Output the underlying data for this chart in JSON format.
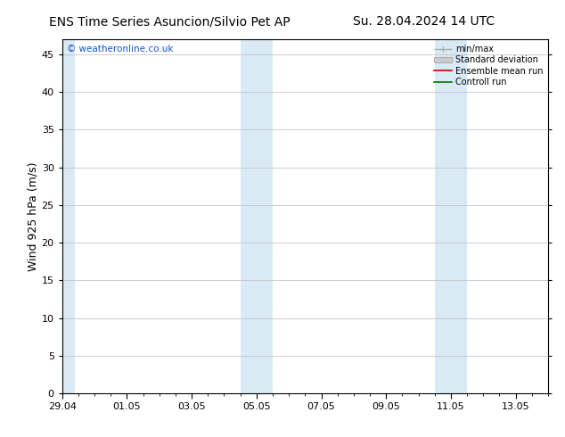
{
  "title_left": "ENS Time Series Asuncion/Silvio Pet AP",
  "title_right": "Su. 28.04.2024 14 UTC",
  "ylabel": "Wind 925 hPa (m/s)",
  "watermark": "© weatheronline.co.uk",
  "xlim_start": 0,
  "xlim_end": 15.0,
  "ylim": [
    0,
    47
  ],
  "yticks": [
    0,
    5,
    10,
    15,
    20,
    25,
    30,
    35,
    40,
    45
  ],
  "xtick_labels": [
    "29.04",
    "01.05",
    "03.05",
    "05.05",
    "07.05",
    "09.05",
    "11.05",
    "13.05"
  ],
  "xtick_positions": [
    0,
    2,
    4,
    6,
    8,
    10,
    12,
    14
  ],
  "shaded_bands": [
    {
      "x_start": 0.0,
      "x_end": 0.4
    },
    {
      "x_start": 5.5,
      "x_end": 6.5
    },
    {
      "x_start": 11.5,
      "x_end": 12.5
    }
  ],
  "shaded_color": "#daeaf5",
  "background_color": "#ffffff",
  "title_fontsize": 10,
  "tick_fontsize": 8,
  "label_fontsize": 9,
  "watermark_color": "#1155cc",
  "grid_color": "#bbbbbb"
}
